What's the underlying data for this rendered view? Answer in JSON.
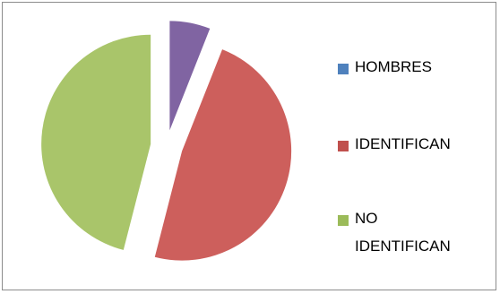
{
  "chart_data": {
    "type": "pie",
    "title": "",
    "exploded": true,
    "legend_position": "right",
    "categories": [
      "HOMBRES",
      "IDENTIFICAN",
      "NO IDENTIFICAN"
    ],
    "legend": [
      {
        "line1": "HOMBRES",
        "line2": ""
      },
      {
        "line1": "IDENTIFICAN",
        "line2": ""
      },
      {
        "line1": "NO",
        "line2": "IDENTIFICAN"
      }
    ],
    "values": [
      6,
      48,
      46
    ],
    "slices": [
      {
        "name": "HOMBRES",
        "value": 6,
        "color": "#4f81bd",
        "drawn_color": "#8064a2"
      },
      {
        "name": "IDENTIFICAN",
        "value": 48,
        "color": "#c0504d",
        "drawn_color": "#cd5f5c"
      },
      {
        "name": "NO IDENTIFICAN",
        "value": 46,
        "color": "#9bbb59",
        "drawn_color": "#a9c56a"
      }
    ]
  }
}
